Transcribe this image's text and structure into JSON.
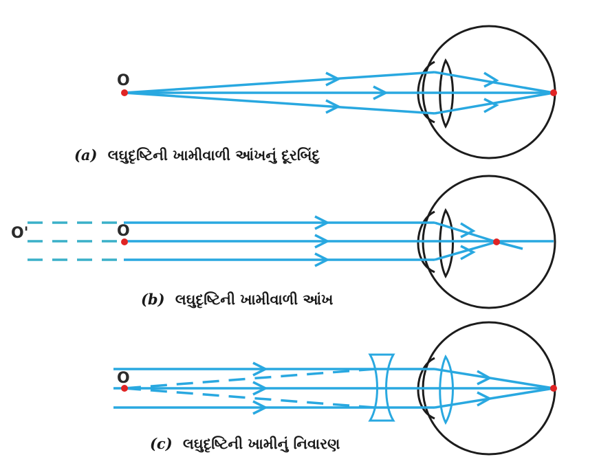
{
  "colors": {
    "ray": "#29a8e0",
    "eye_outline": "#1c1c1c",
    "point": "#e02424",
    "dashed": "#3ab0c8",
    "lens": "#29a8e0"
  },
  "panels": [
    {
      "id": "a",
      "object_label": "O",
      "caption_letter": "(a)",
      "caption_text": "લઘુદૃષ્ટિની ખામીવાળી આંખનું દૂરબિંદુ"
    },
    {
      "id": "b",
      "object_label": "O",
      "far_label": "O'",
      "caption_letter": "(b)",
      "caption_text": "લઘુદૃષ્ટિની ખામીવાળી આંખ"
    },
    {
      "id": "c",
      "object_label": "O",
      "caption_letter": "(c)",
      "caption_text": "લઘુદૃષ્ટિની ખામીનું નિવારણ"
    }
  ]
}
